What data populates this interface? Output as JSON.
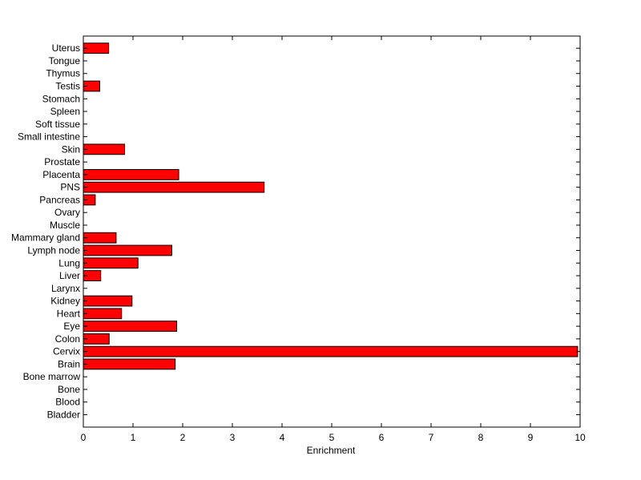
{
  "chart_data": {
    "type": "bar",
    "orientation": "horizontal",
    "title": "",
    "xlabel": "Enrichment",
    "ylabel": "",
    "xlim": [
      0,
      10
    ],
    "xticks": [
      "0",
      "1",
      "2",
      "3",
      "4",
      "5",
      "6",
      "7",
      "8",
      "9",
      "10"
    ],
    "grid": false,
    "bar_color": "#ff0000",
    "bar_edge_color": "#000000",
    "categories": [
      "Bladder",
      "Blood",
      "Bone",
      "Bone marrow",
      "Brain",
      "Cervix",
      "Colon",
      "Eye",
      "Heart",
      "Kidney",
      "Larynx",
      "Liver",
      "Lung",
      "Lymph node",
      "Mammary gland",
      "Muscle",
      "Ovary",
      "Pancreas",
      "PNS",
      "Placenta",
      "Prostate",
      "Skin",
      "Small intestine",
      "Soft tissue",
      "Spleen",
      "Stomach",
      "Testis",
      "Thymus",
      "Tongue",
      "Uterus"
    ],
    "values": [
      0,
      0,
      0,
      0,
      1.85,
      9.95,
      0.52,
      1.88,
      0.77,
      0.98,
      0,
      0.35,
      1.1,
      1.78,
      0.66,
      0,
      0,
      0.24,
      3.64,
      1.92,
      0,
      0.83,
      0,
      0,
      0,
      0,
      0.33,
      0,
      0,
      0.51
    ]
  }
}
